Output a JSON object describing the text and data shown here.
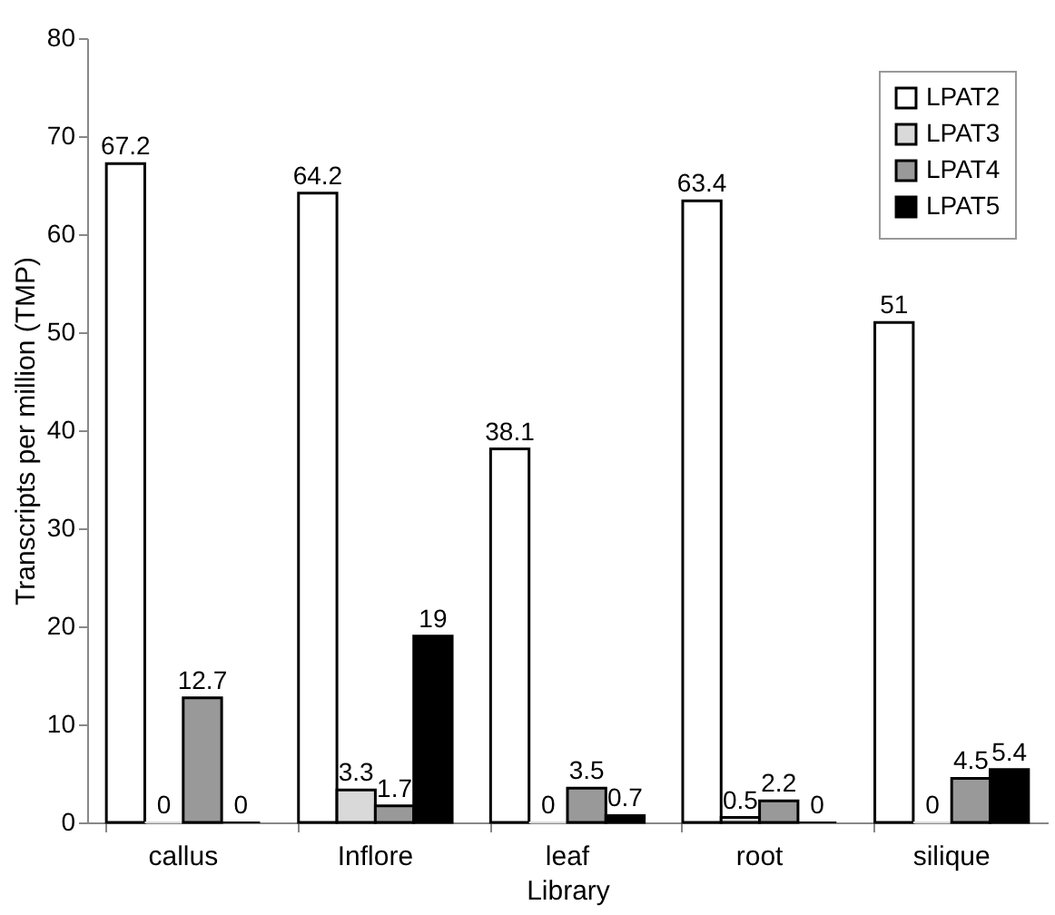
{
  "chart_data": {
    "type": "bar",
    "xlabel": "Library",
    "ylabel": "Transcripts per million (TMP)",
    "categories": [
      "callus",
      "Inflore",
      "leaf",
      "root",
      "silique"
    ],
    "series": [
      {
        "name": "LPAT2",
        "color": "#ffffff",
        "values": [
          67.2,
          64.2,
          38.1,
          63.4,
          51
        ]
      },
      {
        "name": "LPAT3",
        "color": "#d9d9d9",
        "values": [
          0,
          3.3,
          0,
          0.5,
          0
        ]
      },
      {
        "name": "LPAT4",
        "color": "#999999",
        "values": [
          12.7,
          1.7,
          3.5,
          2.2,
          4.5
        ]
      },
      {
        "name": "LPAT5",
        "color": "#000000",
        "values": [
          0,
          19,
          0.7,
          0,
          5.4
        ]
      }
    ],
    "ylim": [
      0,
      80
    ],
    "yticks": [
      0,
      10,
      20,
      30,
      40,
      50,
      60,
      70,
      80
    ],
    "grid": false,
    "legend": "top right",
    "data_labels": true
  }
}
